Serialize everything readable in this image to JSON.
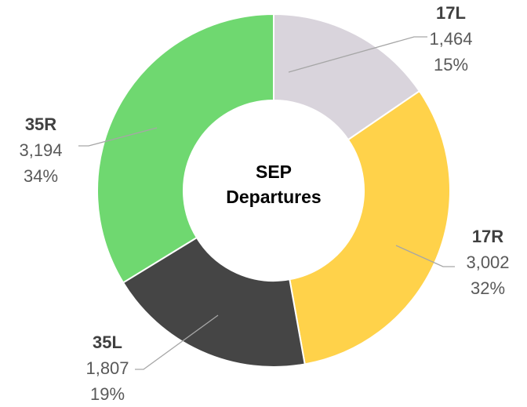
{
  "chart_data": {
    "type": "donut",
    "title": "SEP Departures",
    "categories": [
      "17L",
      "17R",
      "35L",
      "35R"
    ],
    "values": [
      1464,
      3002,
      1807,
      3194
    ],
    "value_labels": [
      "1,464",
      "3,002",
      "1,807",
      "3,194"
    ],
    "percent_labels": [
      "15%",
      "32%",
      "19%",
      "34%"
    ],
    "colors": [
      "#d9d4dc",
      "#ffd24a",
      "#454545",
      "#6fd870"
    ]
  }
}
